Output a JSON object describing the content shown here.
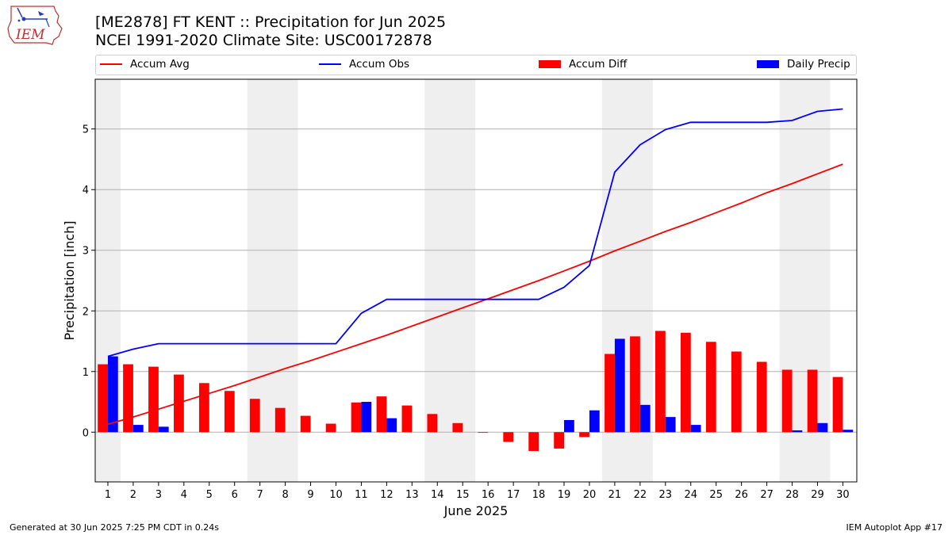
{
  "header": {
    "title_line1": "[ME2878] FT KENT :: Precipitation for Jun 2025",
    "title_line2": "NCEI 1991-2020 Climate Site: USC00172878",
    "logo_text": "IEM"
  },
  "footer": {
    "generated": "Generated at 30 Jun 2025 7:25 PM CDT in 0.24s",
    "app": "IEM Autoplot App #17"
  },
  "colors": {
    "avg": "#ff0000",
    "obs": "#0000ff",
    "diff": "#ff0000",
    "daily": "#0000ff",
    "weekend_shade": "#efefef",
    "grid": "#b0b0b0"
  },
  "chart_data": {
    "type": "bar",
    "xlabel": "June 2025",
    "ylabel": "Precipitation [inch]",
    "ylim": [
      -0.82,
      5.82
    ],
    "yticks": [
      0,
      1,
      2,
      3,
      4,
      5
    ],
    "grid": true,
    "legend_position": "top",
    "days": [
      1,
      2,
      3,
      4,
      5,
      6,
      7,
      8,
      9,
      10,
      11,
      12,
      13,
      14,
      15,
      16,
      17,
      18,
      19,
      20,
      21,
      22,
      23,
      24,
      25,
      26,
      27,
      28,
      29,
      30
    ],
    "weekend_spans": [
      [
        1,
        1
      ],
      [
        7,
        8
      ],
      [
        14,
        15
      ],
      [
        21,
        22
      ],
      [
        28,
        29
      ]
    ],
    "series": [
      {
        "name": "Accum Avg",
        "kind": "line",
        "values": [
          0.13,
          0.25,
          0.38,
          0.51,
          0.64,
          0.77,
          0.91,
          1.05,
          1.18,
          1.32,
          1.46,
          1.6,
          1.75,
          1.9,
          2.05,
          2.2,
          2.35,
          2.5,
          2.66,
          2.82,
          2.99,
          3.15,
          3.31,
          3.46,
          3.62,
          3.78,
          3.95,
          4.1,
          4.26,
          4.42
        ]
      },
      {
        "name": "Accum Obs",
        "kind": "line",
        "values": [
          1.25,
          1.37,
          1.46,
          1.46,
          1.46,
          1.46,
          1.46,
          1.46,
          1.46,
          1.46,
          1.96,
          2.19,
          2.19,
          2.19,
          2.19,
          2.19,
          2.19,
          2.19,
          2.39,
          2.75,
          4.29,
          4.74,
          4.99,
          5.11,
          5.11,
          5.11,
          5.11,
          5.14,
          5.29,
          5.33
        ]
      },
      {
        "name": "Accum Diff",
        "kind": "bar",
        "values": [
          1.12,
          1.12,
          1.08,
          0.95,
          0.81,
          0.68,
          0.55,
          0.4,
          0.27,
          0.14,
          0.49,
          0.59,
          0.44,
          0.3,
          0.15,
          -0.01,
          -0.16,
          -0.31,
          -0.27,
          -0.08,
          1.29,
          1.58,
          1.67,
          1.64,
          1.49,
          1.33,
          1.16,
          1.03,
          1.03,
          0.91
        ]
      },
      {
        "name": "Daily Precip",
        "kind": "bar",
        "values": [
          1.25,
          0.12,
          0.09,
          0,
          0,
          0,
          0,
          0,
          0,
          0,
          0.5,
          0.23,
          0,
          0,
          0,
          0,
          0,
          0,
          0.2,
          0.36,
          1.54,
          0.45,
          0.25,
          0.12,
          0,
          0,
          0,
          0.03,
          0.15,
          0.04
        ]
      }
    ]
  }
}
